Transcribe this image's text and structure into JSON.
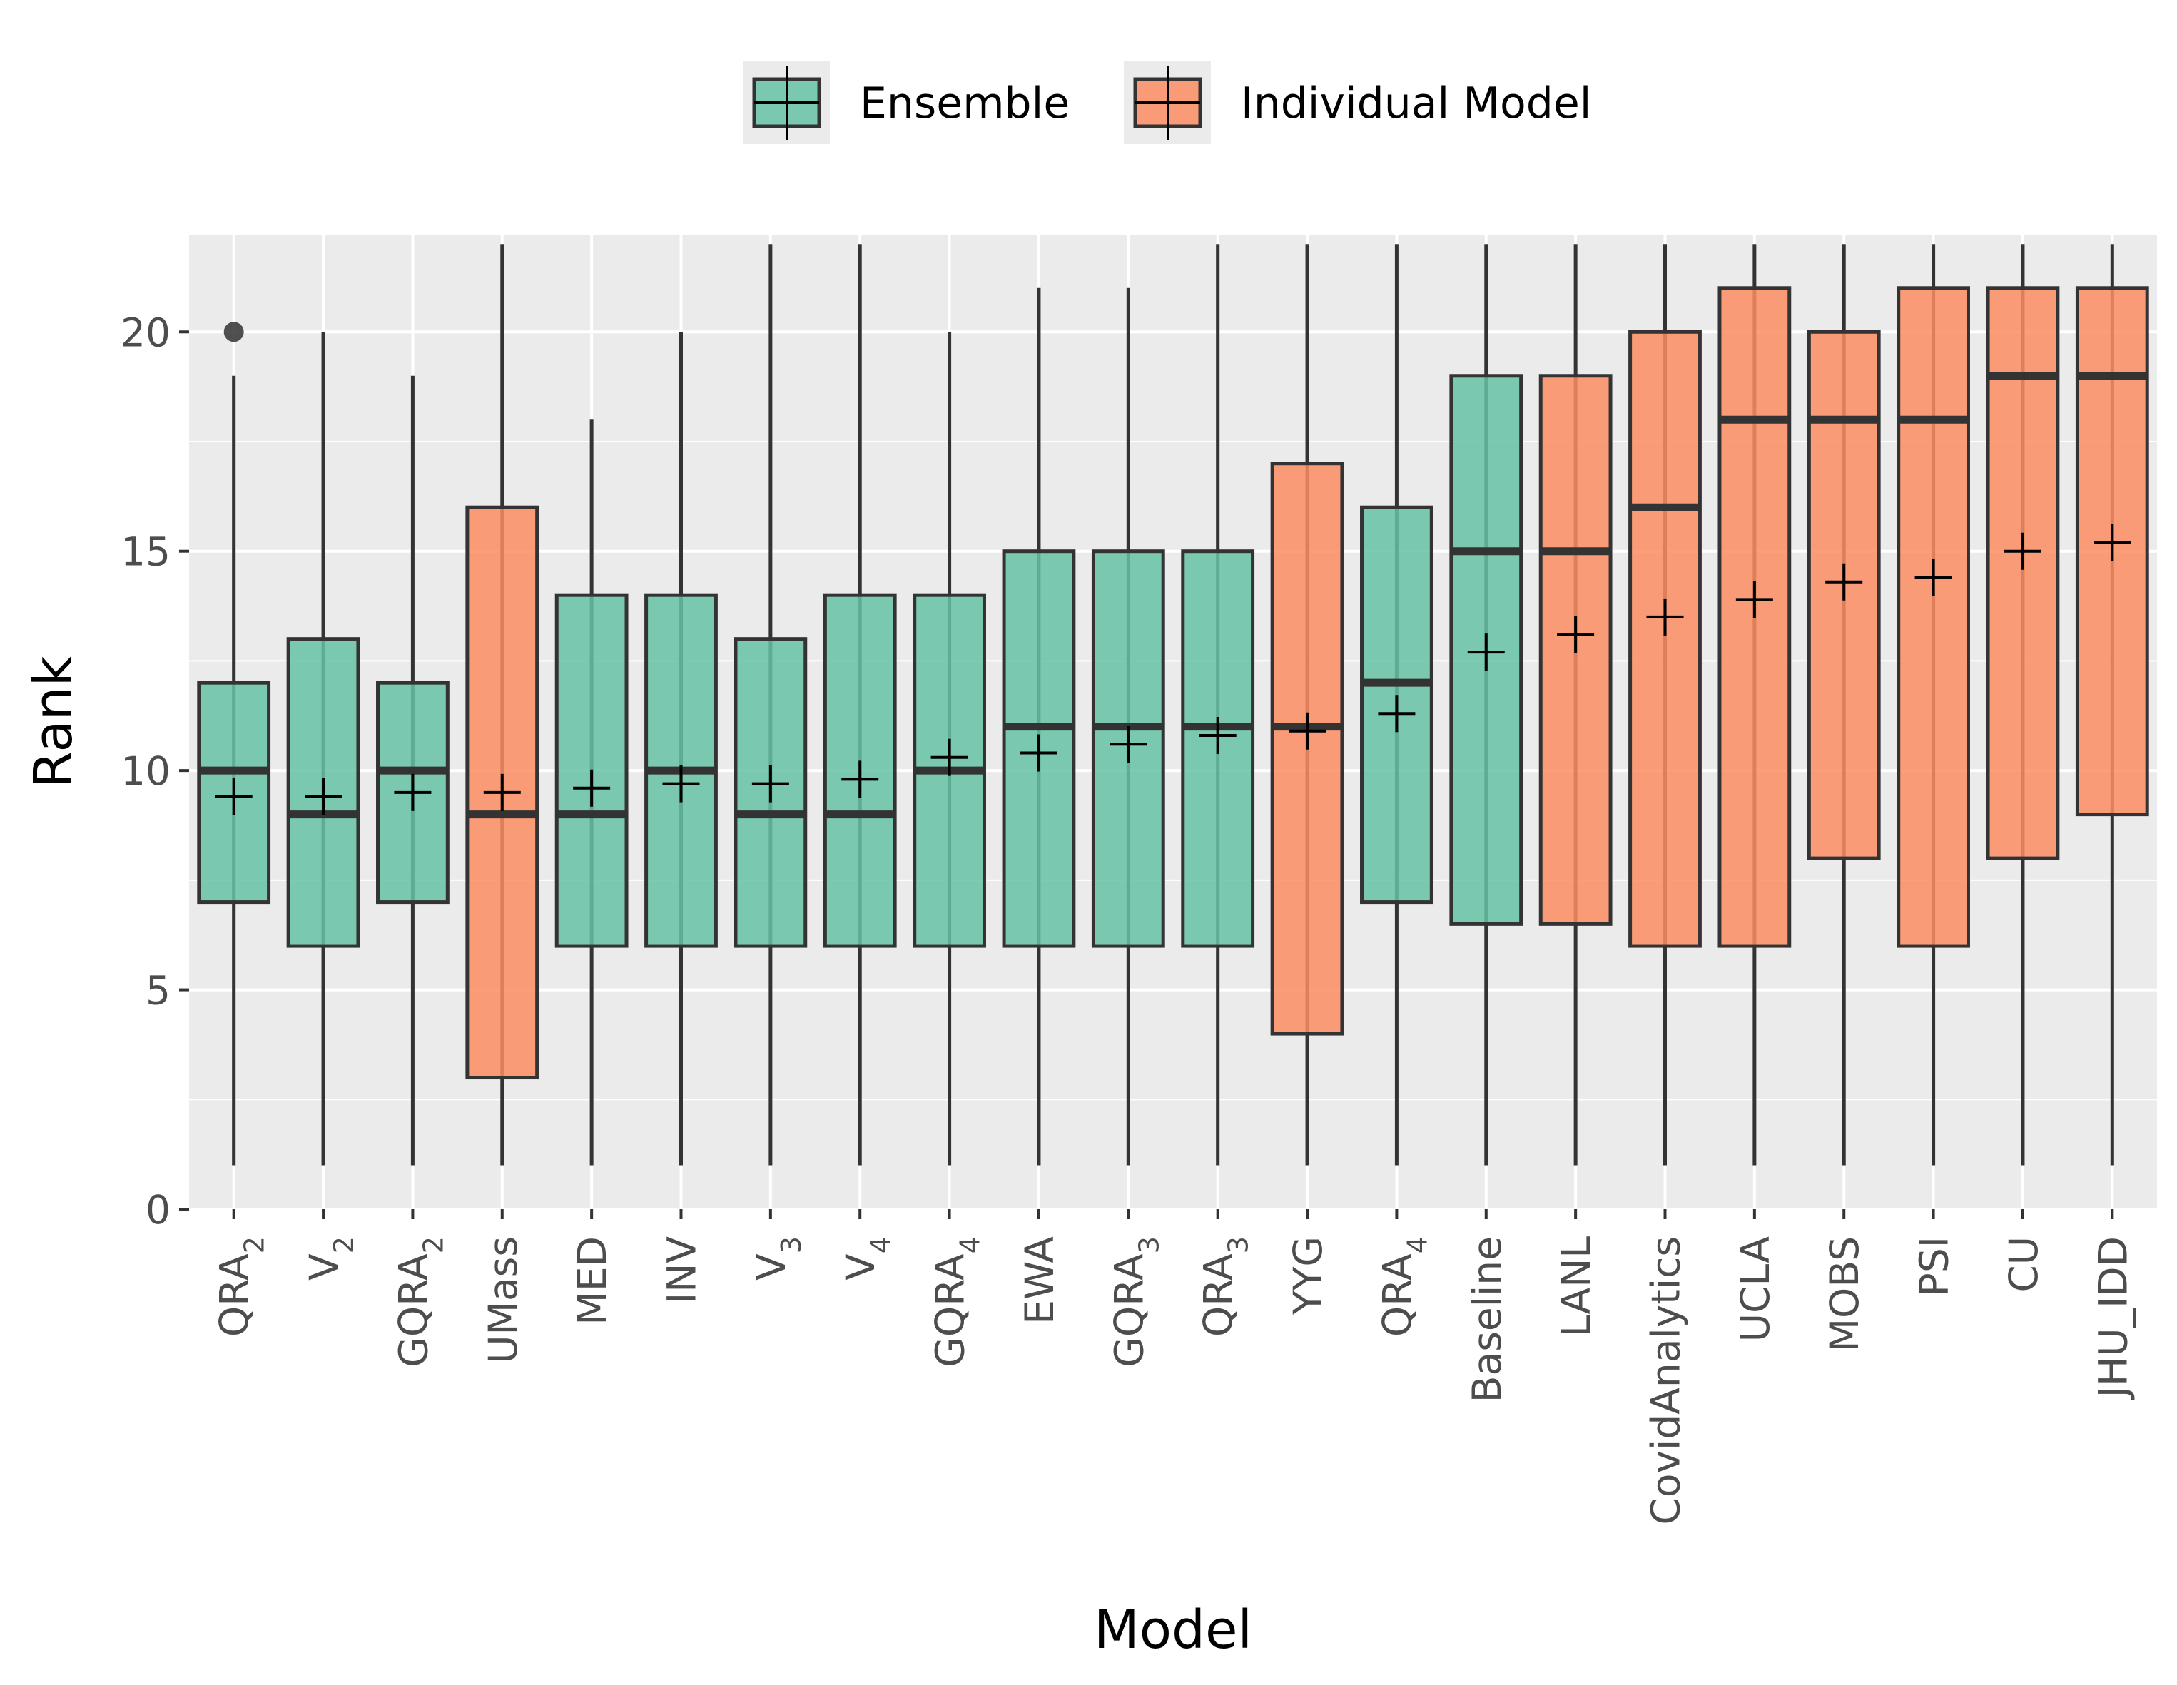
{
  "chart_data": {
    "type": "boxplot",
    "title": "",
    "xlabel": "Model",
    "ylabel": "Rank",
    "ylim": [
      0,
      22.2
    ],
    "y_ticks": [
      0,
      5,
      10,
      15,
      20
    ],
    "grid": true,
    "legend": {
      "position": "top",
      "entries": [
        {
          "label": "Ensemble",
          "color": "#66c2a5"
        },
        {
          "label": "Individual Model",
          "color": "#fc8d62"
        }
      ]
    },
    "categories": [
      {
        "base": "QRA",
        "sub": "2",
        "group": "Ensemble",
        "whisker_low": 1,
        "q1": 7,
        "median": 10,
        "q3": 12,
        "whisker_high": 19,
        "mean": 9.4,
        "outliers": [
          20
        ]
      },
      {
        "base": "V",
        "sub": "2",
        "group": "Ensemble",
        "whisker_low": 1,
        "q1": 6,
        "median": 9,
        "q3": 13,
        "whisker_high": 20,
        "mean": 9.4,
        "outliers": []
      },
      {
        "base": "GQRA",
        "sub": "2",
        "group": "Ensemble",
        "whisker_low": 1,
        "q1": 7,
        "median": 10,
        "q3": 12,
        "whisker_high": 19,
        "mean": 9.5,
        "outliers": []
      },
      {
        "base": "UMass",
        "sub": "",
        "group": "Individual Model",
        "whisker_low": 1,
        "q1": 3,
        "median": 9,
        "q3": 16,
        "whisker_high": 22,
        "mean": 9.5,
        "outliers": []
      },
      {
        "base": "MED",
        "sub": "",
        "group": "Ensemble",
        "whisker_low": 1,
        "q1": 6,
        "median": 9,
        "q3": 14,
        "whisker_high": 18,
        "mean": 9.6,
        "outliers": []
      },
      {
        "base": "INV",
        "sub": "",
        "group": "Ensemble",
        "whisker_low": 1,
        "q1": 6,
        "median": 10,
        "q3": 14,
        "whisker_high": 20,
        "mean": 9.7,
        "outliers": []
      },
      {
        "base": "V",
        "sub": "3",
        "group": "Ensemble",
        "whisker_low": 1,
        "q1": 6,
        "median": 9,
        "q3": 13,
        "whisker_high": 22,
        "mean": 9.7,
        "outliers": []
      },
      {
        "base": "V",
        "sub": "4",
        "group": "Ensemble",
        "whisker_low": 1,
        "q1": 6,
        "median": 9,
        "q3": 14,
        "whisker_high": 22,
        "mean": 9.8,
        "outliers": []
      },
      {
        "base": "GQRA",
        "sub": "4",
        "group": "Ensemble",
        "whisker_low": 1,
        "q1": 6,
        "median": 10,
        "q3": 14,
        "whisker_high": 20,
        "mean": 10.3,
        "outliers": []
      },
      {
        "base": "EWA",
        "sub": "",
        "group": "Ensemble",
        "whisker_low": 1,
        "q1": 6,
        "median": 11,
        "q3": 15,
        "whisker_high": 21,
        "mean": 10.4,
        "outliers": []
      },
      {
        "base": "GQRA",
        "sub": "3",
        "group": "Ensemble",
        "whisker_low": 1,
        "q1": 6,
        "median": 11,
        "q3": 15,
        "whisker_high": 21,
        "mean": 10.6,
        "outliers": []
      },
      {
        "base": "QRA",
        "sub": "3",
        "group": "Ensemble",
        "whisker_low": 1,
        "q1": 6,
        "median": 11,
        "q3": 15,
        "whisker_high": 22,
        "mean": 10.8,
        "outliers": []
      },
      {
        "base": "YYG",
        "sub": "",
        "group": "Individual Model",
        "whisker_low": 1,
        "q1": 4,
        "median": 11,
        "q3": 17,
        "whisker_high": 22,
        "mean": 10.9,
        "outliers": []
      },
      {
        "base": "QRA",
        "sub": "4",
        "group": "Ensemble",
        "whisker_low": 1,
        "q1": 7,
        "median": 12,
        "q3": 16,
        "whisker_high": 22,
        "mean": 11.3,
        "outliers": []
      },
      {
        "base": "Baseline",
        "sub": "",
        "group": "Ensemble",
        "whisker_low": 1,
        "q1": 6.5,
        "median": 15,
        "q3": 19,
        "whisker_high": 22,
        "mean": 12.7,
        "outliers": []
      },
      {
        "base": "LANL",
        "sub": "",
        "group": "Individual Model",
        "whisker_low": 1,
        "q1": 6.5,
        "median": 15,
        "q3": 19,
        "whisker_high": 22,
        "mean": 13.1,
        "outliers": []
      },
      {
        "base": "CovidAnalytics",
        "sub": "",
        "group": "Individual Model",
        "whisker_low": 1,
        "q1": 6,
        "median": 16,
        "q3": 20,
        "whisker_high": 22,
        "mean": 13.5,
        "outliers": []
      },
      {
        "base": "UCLA",
        "sub": "",
        "group": "Individual Model",
        "whisker_low": 1,
        "q1": 6,
        "median": 18,
        "q3": 21,
        "whisker_high": 22,
        "mean": 13.9,
        "outliers": []
      },
      {
        "base": "MOBS",
        "sub": "",
        "group": "Individual Model",
        "whisker_low": 1,
        "q1": 8,
        "median": 18,
        "q3": 20,
        "whisker_high": 22,
        "mean": 14.3,
        "outliers": []
      },
      {
        "base": "PSI",
        "sub": "",
        "group": "Individual Model",
        "whisker_low": 1,
        "q1": 6,
        "median": 18,
        "q3": 21,
        "whisker_high": 22,
        "mean": 14.4,
        "outliers": []
      },
      {
        "base": "CU",
        "sub": "",
        "group": "Individual Model",
        "whisker_low": 1,
        "q1": 8,
        "median": 19,
        "q3": 21,
        "whisker_high": 22,
        "mean": 15.0,
        "outliers": []
      },
      {
        "base": "JHU_IDD",
        "sub": "",
        "group": "Individual Model",
        "whisker_low": 1,
        "q1": 9,
        "median": 19,
        "q3": 21,
        "whisker_high": 22,
        "mean": 15.2,
        "outliers": []
      }
    ]
  }
}
